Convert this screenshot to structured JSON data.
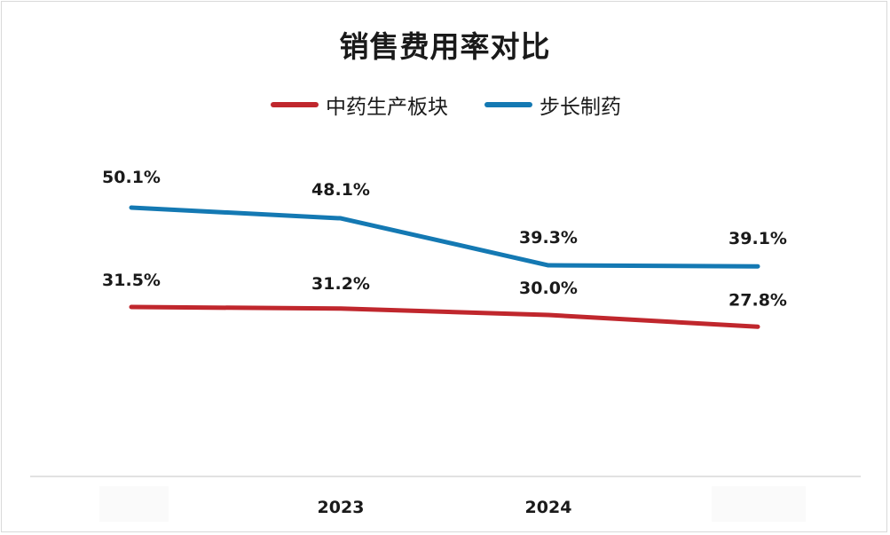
{
  "chart_data": {
    "type": "line",
    "title": "销售费用率对比",
    "categories": [
      "",
      "2023",
      "2024",
      ""
    ],
    "series": [
      {
        "name": "中药生产板块",
        "color": "#c0272d",
        "values": [
          31.5,
          31.2,
          30.0,
          27.8
        ],
        "labels": [
          "31.5%",
          "31.2%",
          "30.0%",
          "27.8%"
        ]
      },
      {
        "name": "步长制药",
        "color": "#1479b3",
        "values": [
          50.1,
          48.1,
          39.3,
          39.1
        ],
        "labels": [
          "50.1%",
          "48.1%",
          "39.3%",
          "39.1%"
        ]
      }
    ],
    "ylim": [
      0,
      70
    ],
    "xlabel": "",
    "ylabel": "",
    "legend_position": "top",
    "grid": false
  }
}
